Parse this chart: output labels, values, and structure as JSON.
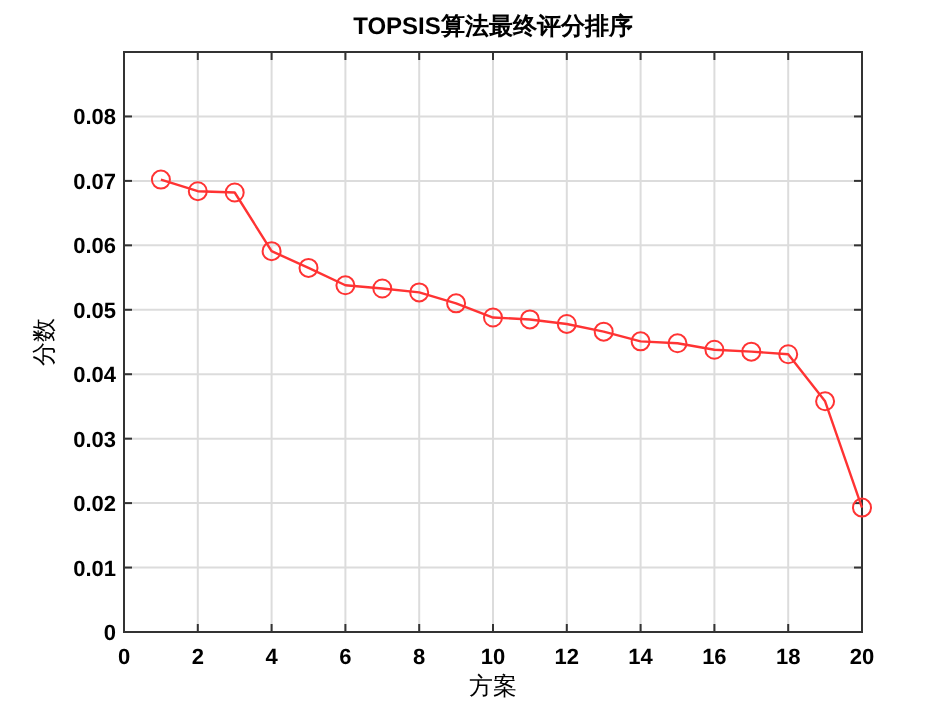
{
  "chart_data": {
    "type": "line",
    "title": "TOPSIS算法最终评分排序",
    "xlabel": "方案",
    "ylabel": "分数",
    "x": [
      1,
      2,
      3,
      4,
      5,
      6,
      7,
      8,
      9,
      10,
      11,
      12,
      13,
      14,
      15,
      16,
      17,
      18,
      19,
      20
    ],
    "series": [
      {
        "color": "#ff3333",
        "values": [
          0.0702,
          0.0684,
          0.0682,
          0.0591,
          0.0565,
          0.0538,
          0.0533,
          0.0527,
          0.051,
          0.0488,
          0.0485,
          0.0478,
          0.0466,
          0.0451,
          0.0448,
          0.0438,
          0.0435,
          0.0431,
          0.0358,
          0.0193
        ]
      }
    ],
    "xlim": [
      0,
      20
    ],
    "xticks": [
      0,
      2,
      4,
      6,
      8,
      10,
      12,
      14,
      16,
      18,
      20
    ],
    "ylim": [
      0,
      0.09
    ],
    "yticks": [
      0,
      0.01,
      0.02,
      0.03,
      0.04,
      0.05,
      0.06,
      0.07,
      0.08
    ],
    "grid": true,
    "marker": "circle",
    "line_style": "solid"
  }
}
